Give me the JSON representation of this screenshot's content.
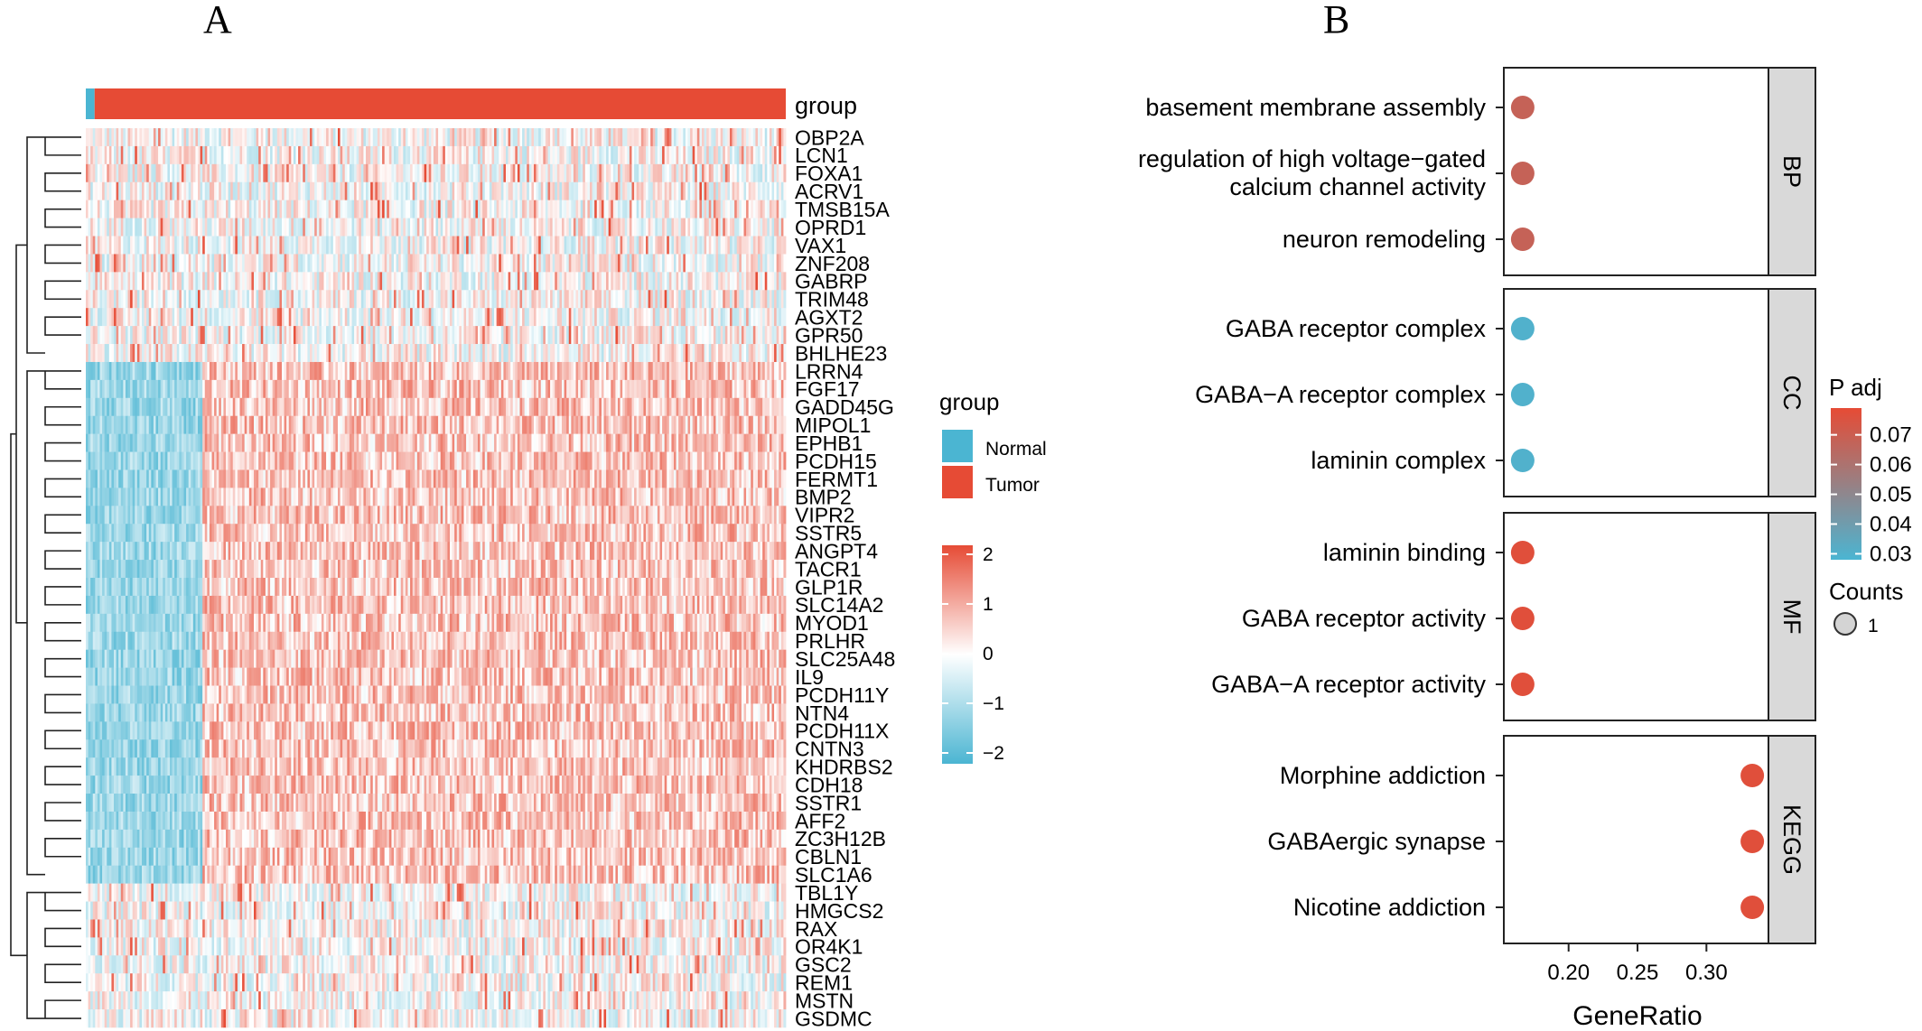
{
  "panels": {
    "a_label": "A",
    "b_label": "B"
  },
  "heatmap": {
    "group_annotation_label": "group",
    "genes": [
      "OBP2A",
      "LCN1",
      "FOXA1",
      "ACRV1",
      "TMSB15A",
      "OPRD1",
      "VAX1",
      "ZNF208",
      "GABRP",
      "TRIM48",
      "AGXT2",
      "GPR50",
      "BHLHE23",
      "LRRN4",
      "FGF17",
      "GADD45G",
      "MIPOL1",
      "EPHB1",
      "PCDH15",
      "FERMT1",
      "BMP2",
      "VIPR2",
      "SSTR5",
      "ANGPT4",
      "TACR1",
      "GLP1R",
      "SLC14A2",
      "MYOD1",
      "PRLHR",
      "SLC25A48",
      "IL9",
      "PCDH11Y",
      "NTN4",
      "PCDH11X",
      "CNTN3",
      "KHDRBS2",
      "CDH18",
      "SSTR1",
      "AFF2",
      "ZC3H12B",
      "CBLN1",
      "SLC1A6",
      "TBL1Y",
      "HMGCS2",
      "RAX",
      "OR4K1",
      "GSC2",
      "REM1",
      "MSTN",
      "GSDMC"
    ],
    "group_legend": {
      "title": "group",
      "items": [
        {
          "label": "Normal",
          "color": "#4BB5D2"
        },
        {
          "label": "Tumor",
          "color": "#E64B35"
        }
      ]
    },
    "color_scale": {
      "low_color": "#4BB5D2",
      "mid_color": "#FFFFFF",
      "high_color": "#E64B35",
      "min": -2,
      "max": 2,
      "tick_labels": [
        "2",
        "1",
        "0",
        "−1",
        "−2"
      ]
    }
  },
  "chart_data": {
    "type": "scatter",
    "xlabel": "GeneRatio",
    "x_ticks": [
      "0.20",
      "0.25",
      "0.30"
    ],
    "xlim": [
      0.153,
      0.345
    ],
    "facets": [
      {
        "name": "BP",
        "terms": [
          {
            "label": "basement membrane assembly",
            "generatio": 0.1667,
            "p_adj": 0.068,
            "count": 1
          },
          {
            "label": "regulation of high voltage−gated calcium channel activity",
            "generatio": 0.1667,
            "p_adj": 0.068,
            "count": 1
          },
          {
            "label": "neuron remodeling",
            "generatio": 0.1667,
            "p_adj": 0.068,
            "count": 1
          }
        ]
      },
      {
        "name": "CC",
        "terms": [
          {
            "label": "GABA receptor complex",
            "generatio": 0.1667,
            "p_adj": 0.03,
            "count": 1
          },
          {
            "label": "GABA−A receptor complex",
            "generatio": 0.1667,
            "p_adj": 0.03,
            "count": 1
          },
          {
            "label": "laminin complex",
            "generatio": 0.1667,
            "p_adj": 0.03,
            "count": 1
          }
        ]
      },
      {
        "name": "MF",
        "terms": [
          {
            "label": "laminin binding",
            "generatio": 0.1667,
            "p_adj": 0.077,
            "count": 1
          },
          {
            "label": "GABA receptor activity",
            "generatio": 0.1667,
            "p_adj": 0.077,
            "count": 1
          },
          {
            "label": "GABA−A receptor activity",
            "generatio": 0.1667,
            "p_adj": 0.077,
            "count": 1
          }
        ]
      },
      {
        "name": "KEGG",
        "terms": [
          {
            "label": "Morphine addiction",
            "generatio": 0.3333,
            "p_adj": 0.077,
            "count": 1
          },
          {
            "label": "GABAergic synapse",
            "generatio": 0.3333,
            "p_adj": 0.077,
            "count": 1
          },
          {
            "label": "Nicotine addiction",
            "generatio": 0.3333,
            "p_adj": 0.077,
            "count": 1
          }
        ]
      }
    ],
    "color_legend": {
      "title": "P adj",
      "low_color": "#4BB5D2",
      "high_color": "#E64B35",
      "min": 0.028,
      "max": 0.079,
      "ticks": [
        0.07,
        0.06,
        0.05,
        0.04,
        0.03
      ],
      "tick_labels": [
        "0.07",
        "0.06",
        "0.05",
        "0.04",
        "0.03"
      ]
    },
    "size_legend": {
      "title": "Counts",
      "items": [
        {
          "label": "1",
          "value": 1
        }
      ]
    },
    "grid": false
  }
}
